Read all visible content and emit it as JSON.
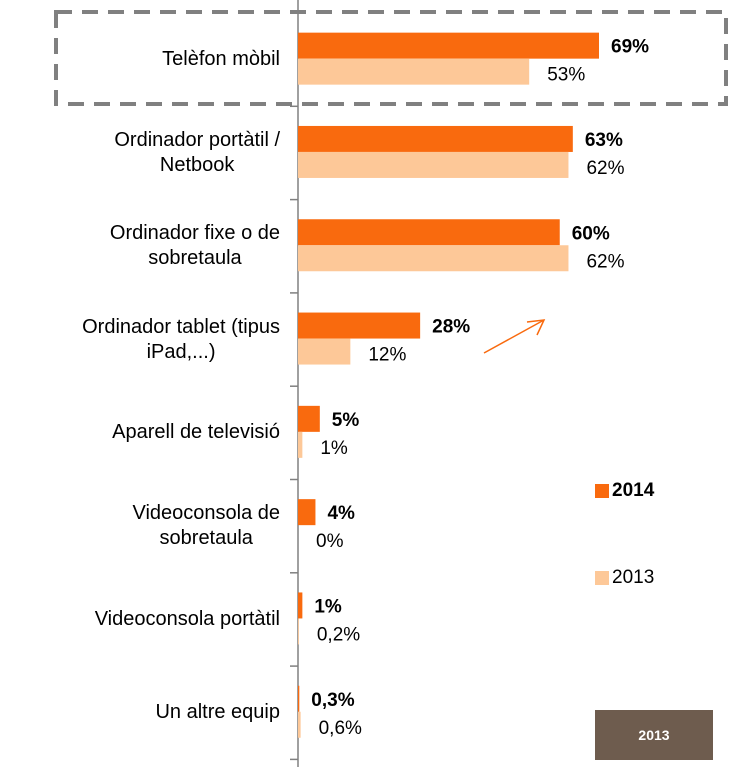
{
  "chart_data": {
    "type": "bar",
    "orientation": "horizontal",
    "categories": [
      "Telèfon mòbil",
      "Ordinador portàtil /\nNetbook",
      "Ordinador fixe o de\nsobretaula",
      "Ordinador tablet (tipus\niPad,...)",
      "Aparell de televisió",
      "Videoconsola de\nsobretaula",
      "Videoconsola portàtil",
      "Un altre equip"
    ],
    "series": [
      {
        "name": "2014",
        "color": "#f96a0e",
        "values": [
          69,
          63,
          60,
          28,
          5,
          4,
          1,
          0.3
        ],
        "value_labels": [
          "69%",
          "63%",
          "60%",
          "28%",
          "5%",
          "4%",
          "1%",
          "0,3%"
        ]
      },
      {
        "name": "2013",
        "color": "#fdc898",
        "values": [
          53,
          62,
          62,
          12,
          1,
          0,
          0.2,
          0.6
        ],
        "value_labels": [
          "53%",
          "62%",
          "62%",
          "12%",
          "1%",
          "0%",
          "0,2%",
          "0,6%"
        ]
      }
    ],
    "annotation": "2013"
  }
}
